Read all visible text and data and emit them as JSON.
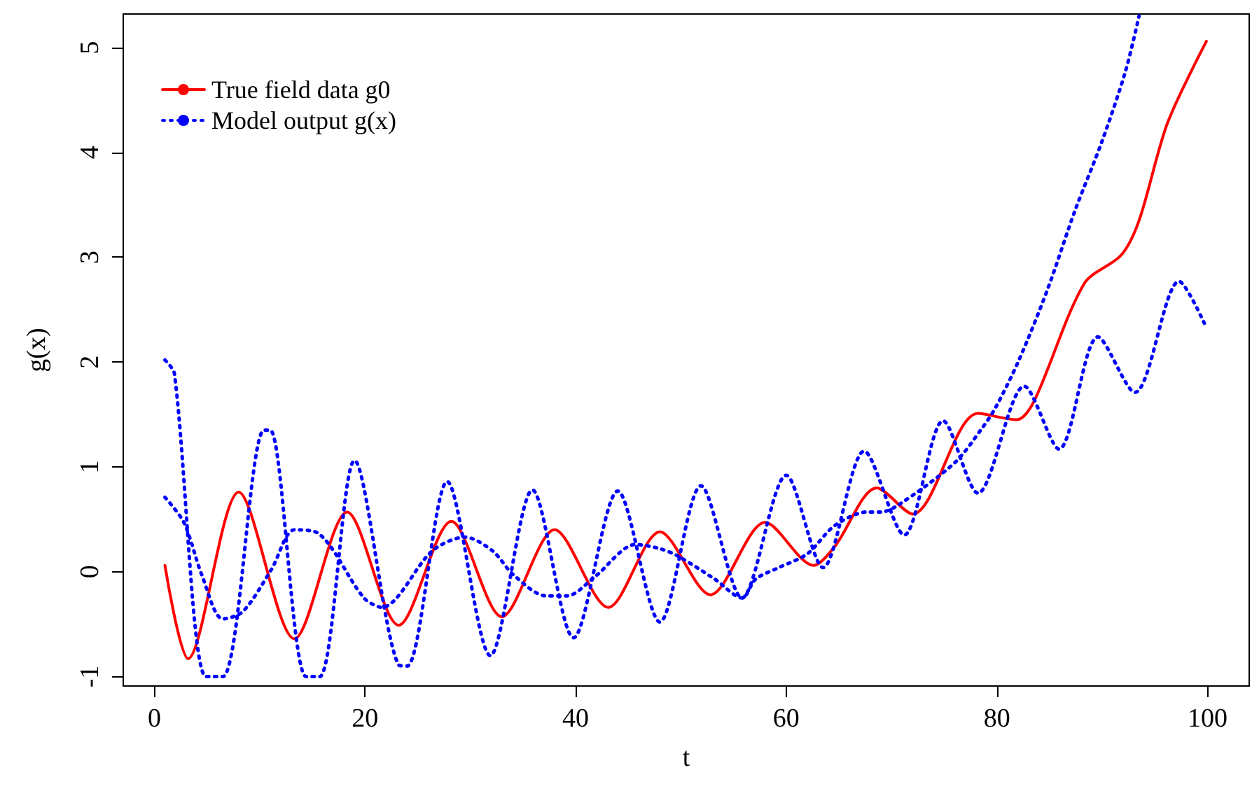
{
  "chart_data": {
    "type": "line",
    "xlabel": "t",
    "ylabel": "g(x)",
    "xlim": [
      -2.96,
      103.96
    ],
    "ylim": [
      -1.09,
      5.32
    ],
    "xticks": [
      0,
      20,
      40,
      60,
      80,
      100
    ],
    "yticks": [
      -1,
      0,
      1,
      2,
      3,
      4,
      5
    ],
    "grid": false,
    "legend": "top left",
    "marker": "none",
    "series": [
      {
        "name": "True field data g0",
        "color": "#ff0000",
        "line_style": "solid",
        "x": [
          1,
          3.2,
          8,
          13.3,
          18.3,
          23.2,
          28.2,
          33,
          38,
          43.1,
          48,
          52.8,
          58,
          62.6,
          64.6,
          68.6,
          72,
          78.2,
          81.9,
          83.5,
          88.3,
          91.8,
          93.5,
          96.2,
          99.9
        ],
        "values": [
          0.06,
          -0.83,
          0.76,
          -0.64,
          0.57,
          -0.51,
          0.48,
          -0.43,
          0.4,
          -0.34,
          0.38,
          -0.22,
          0.47,
          0.06,
          0.24,
          0.8,
          0.55,
          1.51,
          1.45,
          1.62,
          2.75,
          3.02,
          3.35,
          4.28,
          5.06
        ]
      },
      {
        "name": "Model output g(x)",
        "color": "#0000ff",
        "line_style": "dotted",
        "x": [
          1,
          1.9,
          4.9,
          6.5,
          10.4,
          11,
          14.4,
          15.7,
          19,
          23.2,
          24,
          27.8,
          31.9,
          35.9,
          39.8,
          44,
          48,
          51.9,
          55.8,
          60,
          63.5,
          67.4,
          71.2,
          74.9,
          78.2,
          82.6,
          85.9,
          89.6,
          93.1,
          97.3,
          99.7
        ],
        "values": [
          2.02,
          1.89,
          -1.0,
          -1.0,
          1.35,
          1.35,
          -1.0,
          -1.0,
          1.06,
          -0.89,
          -0.9,
          0.86,
          -0.8,
          0.78,
          -0.63,
          0.77,
          -0.48,
          0.82,
          -0.25,
          0.92,
          0.04,
          1.15,
          0.35,
          1.44,
          0.75,
          1.77,
          1.17,
          2.24,
          1.71,
          2.77,
          2.37
        ]
      },
      {
        "color": "#0000ff",
        "line_style": "dotted",
        "x": [
          1,
          2.8,
          4.5,
          6.5,
          8.4,
          11.1,
          13.3,
          15.5,
          19.9,
          21.6,
          26.4,
          29.5,
          32.1,
          34.1,
          37.2,
          39.2,
          41.8,
          45.7,
          48,
          49.7,
          53.2,
          55.8,
          57.1,
          59.3,
          62,
          64.6,
          67.7,
          69,
          70.7,
          76,
          78.6,
          79.9,
          82.1,
          84.8,
          87.4,
          90,
          92.2,
          93.5
        ],
        "values": [
          0.71,
          0.47,
          -0.03,
          -0.45,
          -0.38,
          0.02,
          0.4,
          0.37,
          -0.25,
          -0.34,
          0.2,
          0.33,
          0.2,
          -0.03,
          -0.23,
          -0.23,
          -0.05,
          0.26,
          0.22,
          0.15,
          -0.07,
          -0.25,
          -0.07,
          0.04,
          0.17,
          0.44,
          0.57,
          0.57,
          0.64,
          1.04,
          1.37,
          1.57,
          2.02,
          2.69,
          3.44,
          4.11,
          4.77,
          5.3
        ]
      }
    ]
  }
}
